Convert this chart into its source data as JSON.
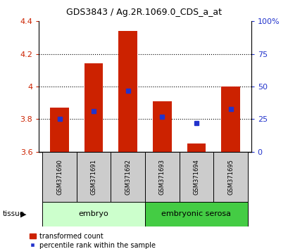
{
  "title": "GDS3843 / Ag.2R.1069.0_CDS_a_at",
  "samples": [
    "GSM371690",
    "GSM371691",
    "GSM371692",
    "GSM371693",
    "GSM371694",
    "GSM371695"
  ],
  "bar_values": [
    3.87,
    4.14,
    4.34,
    3.91,
    3.65,
    4.0
  ],
  "blue_pct": [
    25,
    31,
    47,
    27,
    22,
    33
  ],
  "ylim_left": [
    3.6,
    4.4
  ],
  "ylim_right": [
    0,
    100
  ],
  "yticks_left": [
    3.6,
    3.8,
    4.0,
    4.2,
    4.4
  ],
  "ytick_labels_left": [
    "3.6",
    "3.8",
    "4",
    "4.2",
    "4.4"
  ],
  "yticks_right": [
    0,
    25,
    50,
    75,
    100
  ],
  "ytick_labels_right": [
    "0",
    "25",
    "50",
    "75",
    "100%"
  ],
  "bar_color": "#cc2200",
  "blue_color": "#2233cc",
  "bar_bottom": 3.6,
  "group_embryo_label": "embryo",
  "group_embryo_color": "#ccffcc",
  "group_embryo_darker": "#44cc44",
  "group_serosa_label": "embryonic serosa",
  "group_serosa_color": "#44cc44",
  "tissue_label": "tissue",
  "legend_red": "transformed count",
  "legend_blue": "percentile rank within the sample",
  "sample_box_color": "#cccccc",
  "grid_color": "black",
  "background_color": "#ffffff"
}
